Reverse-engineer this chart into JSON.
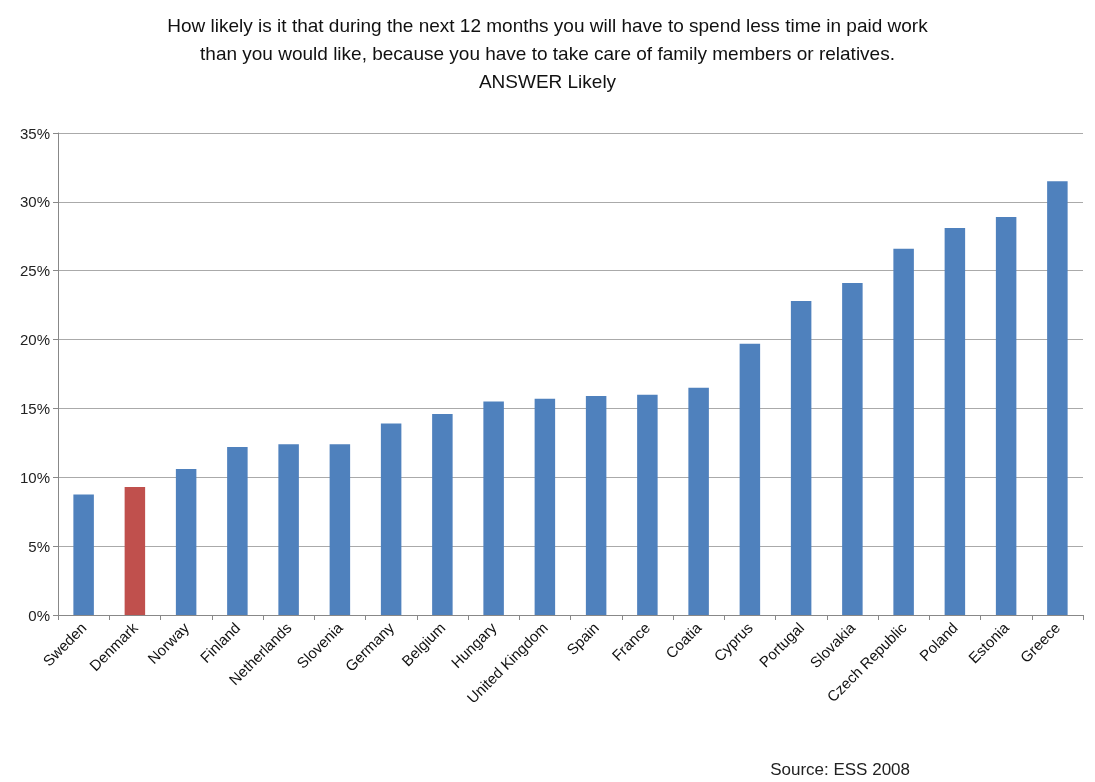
{
  "chart_data": {
    "type": "bar",
    "title": "How likely is it that during the next 12 months you will have to spend less time in paid work\nthan you would like, because you have to take care of family members or relatives.\nANSWER Likely",
    "categories": [
      "Sweden",
      "Denmark",
      "Norway",
      "Finland",
      "Netherlands",
      "Slovenia",
      "Germany",
      "Belgium",
      "Hungary",
      "United Kingdom",
      "Spain",
      "France",
      "Coatia",
      "Cyprus",
      "Portugal",
      "Slovakia",
      "Czech Republic",
      "Poland",
      "Estonia",
      "Greece"
    ],
    "values": [
      8.75,
      9.3,
      10.6,
      12.2,
      12.4,
      12.4,
      13.9,
      14.6,
      15.5,
      15.7,
      15.9,
      16.0,
      16.5,
      19.7,
      22.8,
      24.1,
      26.6,
      28.1,
      28.9,
      31.5
    ],
    "colors": [
      "#4f81bd",
      "#c0504d",
      "#4f81bd",
      "#4f81bd",
      "#4f81bd",
      "#4f81bd",
      "#4f81bd",
      "#4f81bd",
      "#4f81bd",
      "#4f81bd",
      "#4f81bd",
      "#4f81bd",
      "#4f81bd",
      "#4f81bd",
      "#4f81bd",
      "#4f81bd",
      "#4f81bd",
      "#4f81bd",
      "#4f81bd",
      "#4f81bd"
    ],
    "ylim": [
      0,
      35
    ],
    "yticks": [
      {
        "value": 0,
        "label": "0%"
      },
      {
        "value": 5,
        "label": "5%"
      },
      {
        "value": 10,
        "label": "10%"
      },
      {
        "value": 15,
        "label": "15%"
      },
      {
        "value": 20,
        "label": "20%"
      },
      {
        "value": 25,
        "label": "25%"
      },
      {
        "value": 30,
        "label": "30%"
      },
      {
        "value": 35,
        "label": "35%"
      }
    ],
    "grid": "y",
    "annotations": [
      "Source: ESS 2008"
    ]
  }
}
